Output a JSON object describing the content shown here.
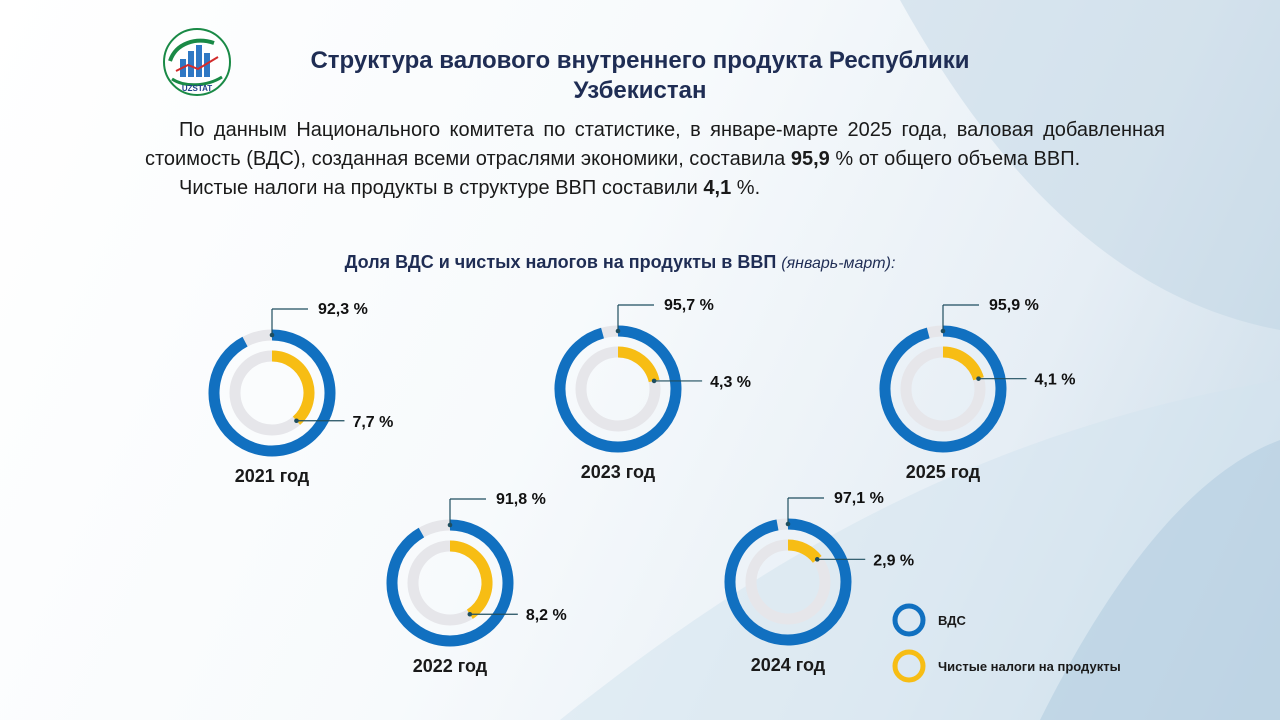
{
  "header": {
    "logo_text": "UZSTAT",
    "title": "Структура валового внутреннего продукта Республики Узбекистан"
  },
  "intro": {
    "p1_before": "По данным Национального комитета по статистике, в январе-марте 2025 года, валовая добавленная стоимость (ВДС), созданная всеми отраслями экономики, составила ",
    "p1_value": "95,9",
    "p1_after": " % от общего объема ВВП.",
    "p2_before": "Чистые налоги на продукты в структуре ВВП составили ",
    "p2_value": "4,1",
    "p2_after": " %."
  },
  "chart_title": {
    "main": "Доля ВДС и чистых налогов на продукты в ВВП",
    "note": "(январь-март):"
  },
  "colors": {
    "vds": "#1170c0",
    "taxes": "#f7bd14",
    "track": "#e6e6ea",
    "leader": "#1f4e5f"
  },
  "chart_data": {
    "type": "donut",
    "title": "Доля ВДС и чистых налогов на продукты в ВВП (январь-март):",
    "unit": "%",
    "legend": [
      {
        "name": "ВДС",
        "color": "#1170c0"
      },
      {
        "name": "Чистые налоги на продукты",
        "color": "#f7bd14"
      }
    ],
    "charts": [
      {
        "year_label": "2021 год",
        "vds": 92.3,
        "taxes": 7.7,
        "vds_label": "92,3 %",
        "taxes_label": "7,7 %"
      },
      {
        "year_label": "2023 год",
        "vds": 95.7,
        "taxes": 4.3,
        "vds_label": "95,7 %",
        "taxes_label": "4,3 %"
      },
      {
        "year_label": "2025 год",
        "vds": 95.9,
        "taxes": 4.1,
        "vds_label": "95,9 %",
        "taxes_label": "4,1 %"
      },
      {
        "year_label": "2022 год",
        "vds": 91.8,
        "taxes": 8.2,
        "vds_label": "91,8 %",
        "taxes_label": "8,2 %"
      },
      {
        "year_label": "2024 год",
        "vds": 97.1,
        "taxes": 2.9,
        "vds_label": "97,1 %",
        "taxes_label": "2,9 %"
      }
    ]
  }
}
